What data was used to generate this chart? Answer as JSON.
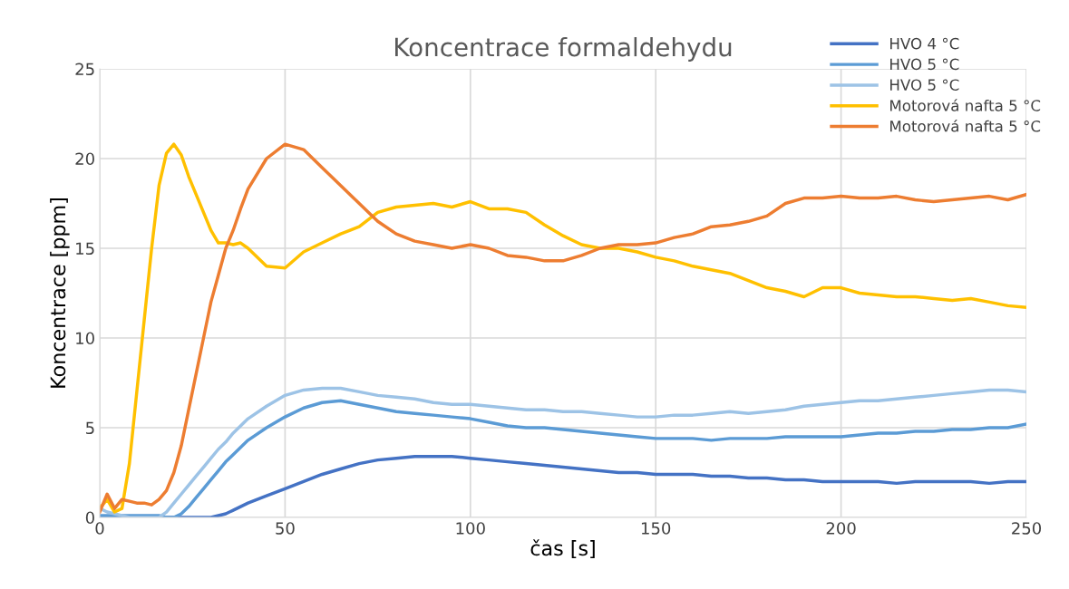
{
  "chart_data": {
    "type": "line",
    "title": "Koncentrace formaldehydu",
    "xlabel": "čas [s]",
    "ylabel": "Koncentrace [ppm]",
    "x": [
      0,
      2,
      4,
      6,
      8,
      10,
      12,
      14,
      16,
      18,
      20,
      22,
      24,
      26,
      28,
      30,
      32,
      34,
      36,
      38,
      40,
      45,
      50,
      55,
      60,
      65,
      70,
      75,
      80,
      85,
      90,
      95,
      100,
      105,
      110,
      115,
      120,
      125,
      130,
      135,
      140,
      145,
      150,
      155,
      160,
      165,
      170,
      175,
      180,
      185,
      190,
      195,
      200,
      205,
      210,
      215,
      220,
      225,
      230,
      235,
      240,
      245,
      250
    ],
    "series": [
      {
        "name": "HVO 4 °C",
        "color": "#4472c4",
        "values": [
          0,
          0,
          0,
          0,
          0,
          0,
          0,
          0,
          0,
          0,
          0,
          0,
          0,
          0,
          0,
          0,
          0.1,
          0.2,
          0.4,
          0.6,
          0.8,
          1.2,
          1.6,
          2,
          2.4,
          2.7,
          3,
          3.2,
          3.3,
          3.4,
          3.4,
          3.4,
          3.3,
          3.2,
          3.1,
          3,
          2.9,
          2.8,
          2.7,
          2.6,
          2.5,
          2.5,
          2.4,
          2.4,
          2.4,
          2.3,
          2.3,
          2.2,
          2.2,
          2.1,
          2.1,
          2,
          2,
          2,
          2,
          1.9,
          2,
          2,
          2,
          2,
          1.9,
          2,
          2
        ]
      },
      {
        "name": "HVO 5 °C",
        "color": "#5b9bd5",
        "values": [
          0.1,
          0.1,
          0.1,
          0.1,
          0.1,
          0.1,
          0.1,
          0.1,
          0.1,
          0,
          0,
          0.2,
          0.6,
          1.1,
          1.6,
          2.1,
          2.6,
          3.1,
          3.5,
          3.9,
          4.3,
          5,
          5.6,
          6.1,
          6.4,
          6.5,
          6.3,
          6.1,
          5.9,
          5.8,
          5.7,
          5.6,
          5.5,
          5.3,
          5.1,
          5,
          5,
          4.9,
          4.8,
          4.7,
          4.6,
          4.5,
          4.4,
          4.4,
          4.4,
          4.3,
          4.4,
          4.4,
          4.4,
          4.5,
          4.5,
          4.5,
          4.5,
          4.6,
          4.7,
          4.7,
          4.8,
          4.8,
          4.9,
          4.9,
          5,
          5,
          5.2
        ]
      },
      {
        "name": "HVO 5 °C",
        "color": "#9dc3e6",
        "values": [
          0.5,
          0.3,
          0.2,
          0.1,
          0,
          0,
          0,
          0,
          0,
          0.3,
          0.8,
          1.3,
          1.8,
          2.3,
          2.8,
          3.3,
          3.8,
          4.2,
          4.7,
          5.1,
          5.5,
          6.2,
          6.8,
          7.1,
          7.2,
          7.2,
          7,
          6.8,
          6.7,
          6.6,
          6.4,
          6.3,
          6.3,
          6.2,
          6.1,
          6,
          6,
          5.9,
          5.9,
          5.8,
          5.7,
          5.6,
          5.6,
          5.7,
          5.7,
          5.8,
          5.9,
          5.8,
          5.9,
          6,
          6.2,
          6.3,
          6.4,
          6.5,
          6.5,
          6.6,
          6.7,
          6.8,
          6.9,
          7,
          7.1,
          7.1,
          7
        ]
      },
      {
        "name": "Motorová nafta 5 °C",
        "color": "#ffc000",
        "values": [
          0.5,
          1,
          0.3,
          0.5,
          3,
          7,
          11,
          15,
          18.5,
          20.3,
          20.8,
          20.2,
          19,
          18,
          17,
          16,
          15.3,
          15.3,
          15.2,
          15.3,
          15,
          14,
          13.9,
          14.8,
          15.3,
          15.8,
          16.2,
          17,
          17.3,
          17.4,
          17.5,
          17.3,
          17.6,
          17.2,
          17.2,
          17,
          16.3,
          15.7,
          15.2,
          15,
          15,
          14.8,
          14.5,
          14.3,
          14,
          13.8,
          13.6,
          13.2,
          12.8,
          12.6,
          12.3,
          12.8,
          12.8,
          12.5,
          12.4,
          12.3,
          12.3,
          12.2,
          12.1,
          12.2,
          12,
          11.8,
          11.7
        ]
      },
      {
        "name": "Motorová nafta 5 °C",
        "color": "#ed7d31",
        "values": [
          0.3,
          1.3,
          0.5,
          1,
          0.9,
          0.8,
          0.8,
          0.7,
          1,
          1.5,
          2.5,
          4,
          6,
          8,
          10,
          12,
          13.5,
          15,
          16,
          17.2,
          18.3,
          20,
          20.8,
          20.5,
          19.5,
          18.5,
          17.5,
          16.5,
          15.8,
          15.4,
          15.2,
          15,
          15.2,
          15,
          14.6,
          14.5,
          14.3,
          14.3,
          14.6,
          15,
          15.2,
          15.2,
          15.3,
          15.6,
          15.8,
          16.2,
          16.3,
          16.5,
          16.8,
          17.5,
          17.8,
          17.8,
          17.9,
          17.8,
          17.8,
          17.9,
          17.7,
          17.6,
          17.7,
          17.8,
          17.9,
          17.7,
          18
        ]
      }
    ],
    "xlim": [
      0,
      250
    ],
    "xticks": [
      0,
      50,
      100,
      150,
      200,
      250
    ],
    "ylim": [
      0,
      25
    ],
    "yticks": [
      0,
      5,
      10,
      15,
      20,
      25
    ],
    "grid": true,
    "legend": "top right",
    "marker": "none",
    "line_style": "solid"
  }
}
